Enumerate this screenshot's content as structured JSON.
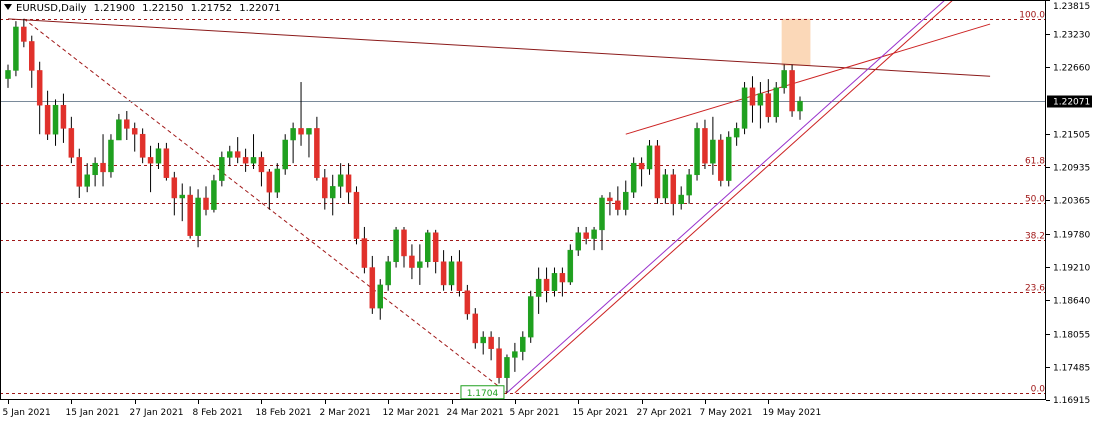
{
  "header": {
    "symbol": "EURUSD,Daily",
    "open": "1.21900",
    "high": "1.22150",
    "low": "1.21752",
    "close": "1.22071"
  },
  "chart_data": {
    "type": "candlestick",
    "symbol": "EURUSD",
    "timeframe": "Daily",
    "ylim": [
      1.16915,
      1.23815
    ],
    "y_ticks": [
      "1.23815",
      "1.23230",
      "1.22660",
      "1.21505",
      "1.20935",
      "1.20365",
      "1.19780",
      "1.19210",
      "1.18640",
      "1.18055",
      "1.17485",
      "1.16915"
    ],
    "current_price": "1.22071",
    "x_ticks": [
      {
        "label": "5 Jan 2021",
        "index": 0
      },
      {
        "label": "15 Jan 2021",
        "index": 8
      },
      {
        "label": "27 Jan 2021",
        "index": 16
      },
      {
        "label": "8 Feb 2021",
        "index": 24
      },
      {
        "label": "18 Feb 2021",
        "index": 32
      },
      {
        "label": "2 Mar 2021",
        "index": 40
      },
      {
        "label": "12 Mar 2021",
        "index": 48
      },
      {
        "label": "24 Mar 2021",
        "index": 56
      },
      {
        "label": "5 Apr 2021",
        "index": 64
      },
      {
        "label": "15 Apr 2021",
        "index": 72
      },
      {
        "label": "27 Apr 2021",
        "index": 80
      },
      {
        "label": "7 May 2021",
        "index": 88
      },
      {
        "label": "19 May 2021",
        "index": 96
      }
    ],
    "fibonacci": [
      {
        "label": "100.0",
        "value": 1.2349
      },
      {
        "label": "61.8",
        "value": 1.2097
      },
      {
        "label": "50.0",
        "value": 1.2032
      },
      {
        "label": "38.2",
        "value": 1.1967
      },
      {
        "label": "23.6",
        "value": 1.1878
      },
      {
        "label": "0.0",
        "value": 1.1704
      }
    ],
    "low_marker": "1.1704",
    "candles": [
      [
        1.2246,
        1.227,
        1.223,
        1.226
      ],
      [
        1.226,
        1.2345,
        1.225,
        1.2335
      ],
      [
        1.2335,
        1.2349,
        1.23,
        1.231
      ],
      [
        1.231,
        1.232,
        1.223,
        1.226
      ],
      [
        1.226,
        1.2275,
        1.215,
        1.22
      ],
      [
        1.22,
        1.2225,
        1.214,
        1.215
      ],
      [
        1.215,
        1.221,
        1.213,
        1.22
      ],
      [
        1.22,
        1.222,
        1.2135,
        1.216
      ],
      [
        1.216,
        1.218,
        1.21,
        1.211
      ],
      [
        1.211,
        1.2125,
        1.204,
        1.206
      ],
      [
        1.206,
        1.21,
        1.205,
        1.208
      ],
      [
        1.208,
        1.211,
        1.206,
        1.21
      ],
      [
        1.21,
        1.215,
        1.206,
        1.2085
      ],
      [
        1.2085,
        1.215,
        1.2075,
        1.214
      ],
      [
        1.214,
        1.2185,
        1.214,
        1.2175
      ],
      [
        1.2175,
        1.219,
        1.214,
        1.216
      ],
      [
        1.216,
        1.217,
        1.212,
        1.215
      ],
      [
        1.215,
        1.216,
        1.21,
        1.211
      ],
      [
        1.211,
        1.213,
        1.205,
        1.21
      ],
      [
        1.21,
        1.2135,
        1.209,
        1.2125
      ],
      [
        1.2125,
        1.2135,
        1.207,
        1.2075
      ],
      [
        1.2075,
        1.2085,
        1.201,
        1.204
      ],
      [
        1.204,
        1.2065,
        1.2,
        1.2045
      ],
      [
        1.2045,
        1.206,
        1.197,
        1.1975
      ],
      [
        1.1975,
        1.2055,
        1.1955,
        1.204
      ],
      [
        1.204,
        1.206,
        1.201,
        1.202
      ],
      [
        1.202,
        1.208,
        1.2015,
        1.207
      ],
      [
        1.207,
        1.212,
        1.206,
        1.211
      ],
      [
        1.211,
        1.213,
        1.2095,
        1.212
      ],
      [
        1.212,
        1.2145,
        1.21,
        1.211
      ],
      [
        1.211,
        1.2125,
        1.2085,
        1.21
      ],
      [
        1.21,
        1.215,
        1.209,
        1.211
      ],
      [
        1.211,
        1.212,
        1.206,
        1.2085
      ],
      [
        1.2085,
        1.209,
        1.202,
        1.205
      ],
      [
        1.205,
        1.21,
        1.204,
        1.209
      ],
      [
        1.209,
        1.215,
        1.208,
        1.214
      ],
      [
        1.214,
        1.217,
        1.21,
        1.216
      ],
      [
        1.216,
        1.224,
        1.213,
        1.215
      ],
      [
        1.215,
        1.216,
        1.211,
        1.216
      ],
      [
        1.216,
        1.218,
        1.207,
        1.2075
      ],
      [
        1.2075,
        1.209,
        1.202,
        1.204
      ],
      [
        1.204,
        1.208,
        1.201,
        1.206
      ],
      [
        1.206,
        1.21,
        1.204,
        1.208
      ],
      [
        1.208,
        1.21,
        1.203,
        1.205
      ],
      [
        1.205,
        1.206,
        1.196,
        1.197
      ],
      [
        1.197,
        1.199,
        1.191,
        1.192
      ],
      [
        1.192,
        1.194,
        1.184,
        1.185
      ],
      [
        1.185,
        1.19,
        1.183,
        1.189
      ],
      [
        1.189,
        1.194,
        1.188,
        1.193
      ],
      [
        1.193,
        1.199,
        1.192,
        1.1985
      ],
      [
        1.1985,
        1.199,
        1.192,
        1.194
      ],
      [
        1.194,
        1.196,
        1.19,
        1.192
      ],
      [
        1.192,
        1.196,
        1.189,
        1.193
      ],
      [
        1.193,
        1.1985,
        1.192,
        1.198
      ],
      [
        1.198,
        1.1985,
        1.191,
        1.193
      ],
      [
        1.193,
        1.195,
        1.188,
        1.189
      ],
      [
        1.189,
        1.194,
        1.188,
        1.193
      ],
      [
        1.193,
        1.195,
        1.187,
        1.188
      ],
      [
        1.188,
        1.189,
        1.183,
        1.184
      ],
      [
        1.184,
        1.185,
        1.178,
        1.179
      ],
      [
        1.179,
        1.181,
        1.177,
        1.18
      ],
      [
        1.18,
        1.181,
        1.176,
        1.178
      ],
      [
        1.178,
        1.18,
        1.172,
        1.173
      ],
      [
        1.173,
        1.177,
        1.1704,
        1.1765
      ],
      [
        1.1765,
        1.179,
        1.174,
        1.1775
      ],
      [
        1.1775,
        1.181,
        1.176,
        1.18
      ],
      [
        1.18,
        1.188,
        1.179,
        1.187
      ],
      [
        1.187,
        1.192,
        1.184,
        1.19
      ],
      [
        1.19,
        1.192,
        1.186,
        1.188
      ],
      [
        1.188,
        1.192,
        1.187,
        1.191
      ],
      [
        1.191,
        1.192,
        1.187,
        1.1895
      ],
      [
        1.1895,
        1.196,
        1.189,
        1.195
      ],
      [
        1.195,
        1.199,
        1.194,
        1.198
      ],
      [
        1.198,
        1.199,
        1.196,
        1.197
      ],
      [
        1.197,
        1.199,
        1.195,
        1.1985
      ],
      [
        1.1985,
        1.2045,
        1.195,
        1.204
      ],
      [
        1.204,
        1.205,
        1.201,
        1.2035
      ],
      [
        1.2035,
        1.206,
        1.201,
        1.202
      ],
      [
        1.202,
        1.207,
        1.201,
        1.205
      ],
      [
        1.205,
        1.211,
        1.204,
        1.21
      ],
      [
        1.21,
        1.211,
        1.206,
        1.209
      ],
      [
        1.209,
        1.214,
        1.208,
        1.213
      ],
      [
        1.213,
        1.214,
        1.203,
        1.204
      ],
      [
        1.204,
        1.209,
        1.203,
        1.208
      ],
      [
        1.208,
        1.209,
        1.201,
        1.203
      ],
      [
        1.203,
        1.206,
        1.202,
        1.2045
      ],
      [
        1.2045,
        1.209,
        1.203,
        1.208
      ],
      [
        1.208,
        1.217,
        1.207,
        1.216
      ],
      [
        1.216,
        1.2175,
        1.209,
        1.21
      ],
      [
        1.21,
        1.218,
        1.208,
        1.214
      ],
      [
        1.214,
        1.215,
        1.206,
        1.207
      ],
      [
        1.207,
        1.2155,
        1.206,
        1.2145
      ],
      [
        1.2145,
        1.217,
        1.213,
        1.216
      ],
      [
        1.216,
        1.224,
        1.215,
        1.223
      ],
      [
        1.223,
        1.225,
        1.217,
        1.22
      ],
      [
        1.22,
        1.224,
        1.216,
        1.222
      ],
      [
        1.222,
        1.2245,
        1.217,
        1.218
      ],
      [
        1.218,
        1.224,
        1.217,
        1.223
      ],
      [
        1.223,
        1.227,
        1.222,
        1.226
      ],
      [
        1.226,
        1.227,
        1.218,
        1.219
      ],
      [
        1.219,
        1.2215,
        1.2175,
        1.2207
      ]
    ],
    "trendlines": [
      {
        "name": "long-resistance",
        "color": "#8b1a1a",
        "from": [
          0,
          1.2349
        ],
        "to": [
          124,
          1.225
        ]
      },
      {
        "name": "channel-top",
        "color": "#cc2222",
        "from": [
          78,
          1.215
        ],
        "to": [
          124,
          1.234
        ]
      },
      {
        "name": "support-red",
        "color": "#cc2222",
        "from": [
          64,
          1.1704
        ],
        "to": [
          120,
          1.239
        ]
      },
      {
        "name": "support-purple",
        "color": "#9933cc",
        "from": [
          63,
          1.1704
        ],
        "to": [
          119,
          1.239
        ]
      }
    ],
    "fib_diagonal": {
      "from": [
        2,
        1.2349
      ],
      "to": [
        63,
        1.1704
      ]
    },
    "highlight_box": {
      "from_index": 98,
      "to_index": 101,
      "top": 1.2349,
      "bottom": 1.2268
    }
  }
}
